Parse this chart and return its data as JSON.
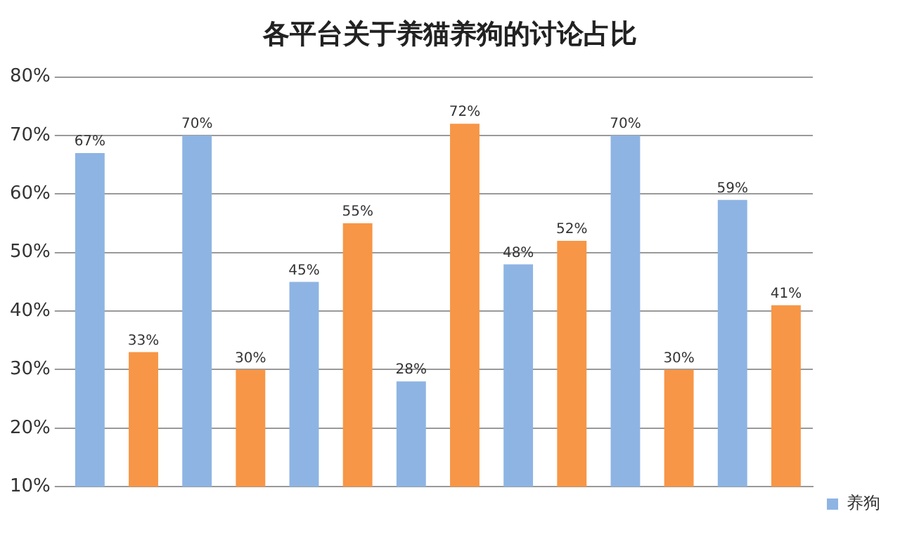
{
  "chart_data": {
    "type": "bar",
    "title": "各平台关于养猫养狗的讨论占比",
    "categories": [
      null,
      null,
      null,
      null,
      null,
      null,
      null
    ],
    "series": [
      {
        "name": "养狗",
        "color": "#8eb4e3",
        "values": [
          67,
          70,
          45,
          28,
          48,
          70,
          59
        ],
        "value_labels": [
          "67%",
          "70%",
          "45%",
          "28%",
          "48%",
          "70%",
          "59%"
        ]
      },
      {
        "color": "#f79646",
        "values": [
          33,
          30,
          55,
          72,
          52,
          30,
          41
        ],
        "value_labels": [
          "33%",
          "30%",
          "55%",
          "72%",
          "52%",
          "30%",
          "41%"
        ]
      }
    ],
    "ylim": [
      10,
      80
    ],
    "yticks": [
      {
        "value": 10,
        "label": "10%"
      },
      {
        "value": 20,
        "label": "20%"
      },
      {
        "value": 30,
        "label": "30%"
      },
      {
        "value": 40,
        "label": "40%"
      },
      {
        "value": 50,
        "label": "50%"
      },
      {
        "value": 60,
        "label": "60%"
      },
      {
        "value": 70,
        "label": "70%"
      },
      {
        "value": 80,
        "label": "80%"
      }
    ],
    "grid": "y",
    "legend": "bottom right"
  }
}
